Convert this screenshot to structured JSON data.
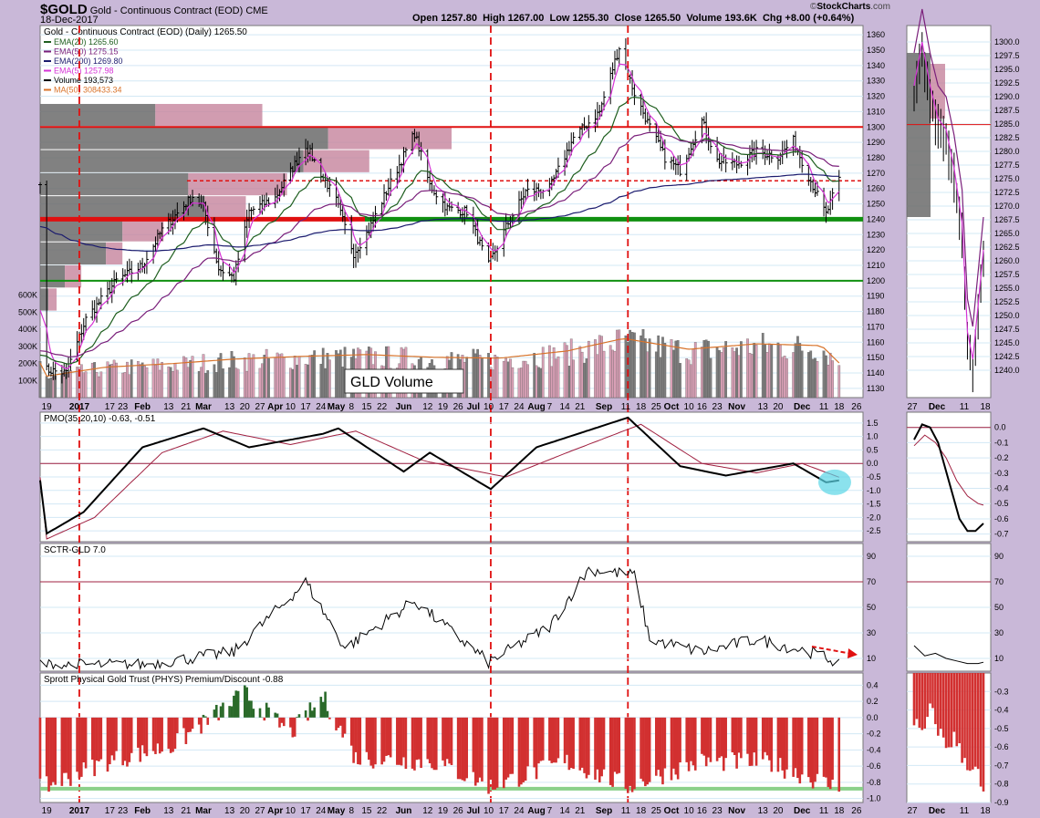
{
  "header": {
    "symbol": "$GOLD",
    "name": "Gold - Continuous Contract (EOD)",
    "exchange": "CME",
    "date": "18-Dec-2017",
    "open_label": "Open",
    "open": "1257.80",
    "high_label": "High",
    "high": "1267.00",
    "low_label": "Low",
    "low": "1255.30",
    "close_label": "Close",
    "close": "1265.50",
    "volume_label": "Volume",
    "volume": "193.6K",
    "chg_label": "Chg",
    "chg": "+8.00 (+0.64%)",
    "credit_prefix": "©",
    "credit_brand": "StockCharts",
    "credit_suffix": ".com"
  },
  "colors": {
    "background": "#c9b8d8",
    "panel": "#ffffff",
    "grid": "#d3e8f5",
    "ema20": "#1e5e1e",
    "ema50": "#7a1f7a",
    "ema200": "#1b1b6e",
    "ema5": "#d633d6",
    "ma50vol": "#d8732a",
    "vol_up": "#d9a0b6",
    "vol_down": "#7d7d7d",
    "vbp_up": "#c5839c",
    "vbp_down": "#6b6b6b",
    "red_line": "#e01010",
    "green_line": "#109010",
    "pmo_signal": "#a02040",
    "hist_neg": "#d23030",
    "hist_pos": "#2a6a2a",
    "highlight": "#5ad6e6"
  },
  "chart_data": [
    {
      "panel": "price",
      "type": "ohlc",
      "title": "Gold - Continuous Contract (EOD) (Daily) 1265.50",
      "legend": [
        {
          "name": "EMA(20)",
          "value": "1265.60"
        },
        {
          "name": "EMA(50)",
          "value": "1275.15"
        },
        {
          "name": "EMA(200)",
          "value": "1269.80"
        },
        {
          "name": "EMA(5)",
          "value": "1257.98"
        },
        {
          "name": "Volume",
          "value": "193,573"
        },
        {
          "name": "MA(50)",
          "value": "308433.34"
        }
      ],
      "ylim": [
        1124,
        1366
      ],
      "y_ticks": [
        1130,
        1140,
        1150,
        1160,
        1170,
        1180,
        1190,
        1200,
        1210,
        1220,
        1230,
        1240,
        1250,
        1260,
        1270,
        1280,
        1290,
        1300,
        1310,
        1320,
        1330,
        1340,
        1350,
        1360
      ],
      "x_labels": [
        "19",
        "2017",
        "17",
        "23",
        "Feb",
        "13",
        "21",
        "Mar",
        "13",
        "20",
        "27",
        "Apr",
        "10",
        "17",
        "24",
        "May",
        "8",
        "15",
        "22",
        "Jun",
        "12",
        "19",
        "26",
        "Jul",
        "10",
        "17",
        "24",
        "Aug",
        "7",
        "14",
        "21",
        "Sep",
        "11",
        "18",
        "25",
        "Oct",
        "10",
        "16",
        "23",
        "Nov",
        "13",
        "20",
        "Dec",
        "11",
        "18",
        "26"
      ],
      "close_series": [
        [
          "2016-12-19",
          1142
        ],
        [
          "2016-12-28",
          1140
        ],
        [
          "2017-01-06",
          1175
        ],
        [
          "2017-01-20",
          1200
        ],
        [
          "2017-02-01",
          1210
        ],
        [
          "2017-02-10",
          1233
        ],
        [
          "2017-02-24",
          1255
        ],
        [
          "2017-03-01",
          1248
        ],
        [
          "2017-03-08",
          1208
        ],
        [
          "2017-03-15",
          1202
        ],
        [
          "2017-03-22",
          1245
        ],
        [
          "2017-04-03",
          1254
        ],
        [
          "2017-04-17",
          1288
        ],
        [
          "2017-04-24",
          1270
        ],
        [
          "2017-05-01",
          1252
        ],
        [
          "2017-05-09",
          1218
        ],
        [
          "2017-05-16",
          1233
        ],
        [
          "2017-05-24",
          1258
        ],
        [
          "2017-06-06",
          1296
        ],
        [
          "2017-06-13",
          1262
        ],
        [
          "2017-06-21",
          1247
        ],
        [
          "2017-06-30",
          1245
        ],
        [
          "2017-07-10",
          1210
        ],
        [
          "2017-07-18",
          1235
        ],
        [
          "2017-07-27",
          1258
        ],
        [
          "2017-08-07",
          1260
        ],
        [
          "2017-08-18",
          1293
        ],
        [
          "2017-08-30",
          1310
        ],
        [
          "2017-09-08",
          1352
        ],
        [
          "2017-09-15",
          1322
        ],
        [
          "2017-09-22",
          1300
        ],
        [
          "2017-09-29",
          1280
        ],
        [
          "2017-10-06",
          1272
        ],
        [
          "2017-10-16",
          1304
        ],
        [
          "2017-10-23",
          1278
        ],
        [
          "2017-11-01",
          1276
        ],
        [
          "2017-11-10",
          1284
        ],
        [
          "2017-11-20",
          1281
        ],
        [
          "2017-11-27",
          1291
        ],
        [
          "2017-12-05",
          1265
        ],
        [
          "2017-12-12",
          1243
        ],
        [
          "2017-12-18",
          1265.5
        ]
      ],
      "horizontal_lines": [
        {
          "value": 1300,
          "style": "solid",
          "color": "red"
        },
        {
          "value": 1265,
          "style": "dashed",
          "color": "red"
        },
        {
          "value": 1240,
          "style": "solid-thick",
          "color": "red+green"
        },
        {
          "value": 1200,
          "style": "solid",
          "color": "green"
        }
      ],
      "vertical_markers": [
        "2017-01-03",
        "2017-07-11",
        "2017-09-12"
      ]
    },
    {
      "panel": "volume",
      "type": "bar",
      "label": "GLD Volume",
      "ylim": [
        0,
        700000
      ],
      "y_ticks": [
        "100K",
        "200K",
        "300K",
        "400K",
        "500K",
        "600K"
      ],
      "volume_k_series": [
        [
          "2016-12-19",
          120
        ],
        [
          "2017-01-15",
          170
        ],
        [
          "2017-02-15",
          190
        ],
        [
          "2017-03-15",
          215
        ],
        [
          "2017-04-15",
          230
        ],
        [
          "2017-05-15",
          240
        ],
        [
          "2017-06-15",
          225
        ],
        [
          "2017-07-15",
          220
        ],
        [
          "2017-08-15",
          260
        ],
        [
          "2017-09-10",
          330
        ],
        [
          "2017-10-10",
          270
        ],
        [
          "2017-11-10",
          300
        ],
        [
          "2017-12-10",
          290
        ],
        [
          "2017-12-18",
          193.6
        ]
      ],
      "ma50_k": 308.4
    },
    {
      "panel": "pmo",
      "type": "line",
      "title": "PMO(35,20,10) -0.63, -0.51",
      "ylim": [
        -2.9,
        1.9
      ],
      "y_ticks": [
        1.5,
        1.0,
        0.5,
        0.0,
        -0.5,
        -1.0,
        -1.5,
        -2.0,
        -2.5
      ],
      "pmo": [
        [
          "2016-12-19",
          -2.6
        ],
        [
          "2017-01-05",
          -1.8
        ],
        [
          "2017-02-01",
          0.6
        ],
        [
          "2017-03-01",
          1.3
        ],
        [
          "2017-03-22",
          0.6
        ],
        [
          "2017-04-25",
          1.1
        ],
        [
          "2017-05-02",
          1.3
        ],
        [
          "2017-06-01",
          -0.3
        ],
        [
          "2017-06-13",
          0.4
        ],
        [
          "2017-07-11",
          -0.95
        ],
        [
          "2017-08-01",
          0.6
        ],
        [
          "2017-09-12",
          1.7
        ],
        [
          "2017-10-06",
          -0.1
        ],
        [
          "2017-10-27",
          -0.45
        ],
        [
          "2017-11-27",
          0.0
        ],
        [
          "2017-12-12",
          -0.7
        ],
        [
          "2017-12-18",
          -0.63
        ]
      ],
      "signal": [
        [
          "2016-12-19",
          -2.8
        ],
        [
          "2017-01-10",
          -2.0
        ],
        [
          "2017-02-10",
          0.4
        ],
        [
          "2017-03-10",
          1.2
        ],
        [
          "2017-04-10",
          0.7
        ],
        [
          "2017-05-10",
          1.2
        ],
        [
          "2017-06-10",
          0.1
        ],
        [
          "2017-07-18",
          -0.5
        ],
        [
          "2017-08-15",
          0.4
        ],
        [
          "2017-09-18",
          1.45
        ],
        [
          "2017-10-16",
          0.0
        ],
        [
          "2017-11-10",
          -0.35
        ],
        [
          "2017-12-01",
          0.0
        ],
        [
          "2017-12-18",
          -0.51
        ]
      ]
    },
    {
      "panel": "sctr",
      "type": "line",
      "title": "SCTR-GLD 7.0",
      "ylim": [
        0,
        100
      ],
      "y_ticks": [
        10,
        30,
        50,
        70,
        90
      ],
      "reference_line": 70,
      "values": [
        [
          "2016-12-19",
          5
        ],
        [
          "2017-02-01",
          5
        ],
        [
          "2017-03-15",
          15
        ],
        [
          "2017-04-17",
          70
        ],
        [
          "2017-05-05",
          18
        ],
        [
          "2017-06-06",
          55
        ],
        [
          "2017-07-10",
          7
        ],
        [
          "2017-08-07",
          35
        ],
        [
          "2017-08-25",
          80
        ],
        [
          "2017-09-15",
          75
        ],
        [
          "2017-09-22",
          25
        ],
        [
          "2017-10-16",
          15
        ],
        [
          "2017-11-10",
          25
        ],
        [
          "2017-12-05",
          15
        ],
        [
          "2017-12-18",
          7
        ]
      ]
    },
    {
      "panel": "phys",
      "type": "bar",
      "title": "Sprott Physical Gold Trust (PHYS) Premium/Discount -0.88",
      "ylim": [
        -1.05,
        0.55
      ],
      "y_ticks": [
        0.4,
        0.2,
        0.0,
        -0.2,
        -0.4,
        -0.6,
        -0.8,
        -1.0
      ],
      "values": [
        [
          "2016-12-19",
          -0.85
        ],
        [
          "2017-01-15",
          -0.55
        ],
        [
          "2017-02-15",
          -0.35
        ],
        [
          "2017-03-20",
          0.3
        ],
        [
          "2017-04-10",
          -0.2
        ],
        [
          "2017-04-25",
          0.25
        ],
        [
          "2017-05-10",
          -0.5
        ],
        [
          "2017-06-15",
          -0.55
        ],
        [
          "2017-07-11",
          -0.85
        ],
        [
          "2017-08-15",
          -0.55
        ],
        [
          "2017-09-12",
          -0.85
        ],
        [
          "2017-10-15",
          -0.55
        ],
        [
          "2017-11-15",
          -0.55
        ],
        [
          "2017-12-18",
          -0.88
        ]
      ]
    },
    {
      "panel": "mini-price",
      "type": "ohlc",
      "ylim": [
        1235,
        1303
      ],
      "y_ticks": [
        "1300.0",
        "1297.5",
        "1295.0",
        "1292.5",
        "1290.0",
        "1287.5",
        "1285.0",
        "1282.5",
        "1280.0",
        "1277.5",
        "1275.0",
        "1272.5",
        "1270.0",
        "1267.5",
        "1265.0",
        "1262.5",
        "1260.0",
        "1257.5",
        "1255.0",
        "1252.5",
        "1250.0",
        "1247.5",
        "1245.0",
        "1242.5",
        "1240.0"
      ],
      "x_labels": [
        "27",
        "Dec",
        "11",
        "18"
      ],
      "values": [
        [
          0,
          1290
        ],
        [
          3,
          1298
        ],
        [
          6,
          1290
        ],
        [
          9,
          1284
        ],
        [
          12,
          1282
        ],
        [
          15,
          1275
        ],
        [
          18,
          1265
        ],
        [
          20,
          1245
        ],
        [
          22,
          1240
        ],
        [
          24,
          1250
        ],
        [
          26,
          1260
        ]
      ]
    },
    {
      "panel": "mini-pmo",
      "type": "line",
      "ylim": [
        -0.75,
        0.1
      ],
      "y_ticks": [
        "0.0",
        "-0.1",
        "-0.2",
        "-0.3",
        "-0.4",
        "-0.5",
        "-0.6",
        "-0.7"
      ],
      "pmo": [
        [
          0,
          -0.08
        ],
        [
          3,
          0.02
        ],
        [
          6,
          0.0
        ],
        [
          9,
          -0.1
        ],
        [
          13,
          -0.35
        ],
        [
          17,
          -0.6
        ],
        [
          20,
          -0.68
        ],
        [
          23,
          -0.68
        ],
        [
          26,
          -0.63
        ]
      ],
      "signal": [
        [
          0,
          -0.12
        ],
        [
          4,
          -0.05
        ],
        [
          8,
          -0.1
        ],
        [
          12,
          -0.2
        ],
        [
          16,
          -0.35
        ],
        [
          20,
          -0.45
        ],
        [
          24,
          -0.5
        ],
        [
          26,
          -0.51
        ]
      ]
    },
    {
      "panel": "mini-sctr",
      "type": "line",
      "ylim": [
        0,
        100
      ],
      "y_ticks": [
        10,
        30,
        50,
        70,
        90
      ],
      "values": [
        [
          0,
          20
        ],
        [
          4,
          12
        ],
        [
          8,
          14
        ],
        [
          12,
          10
        ],
        [
          16,
          8
        ],
        [
          20,
          6
        ],
        [
          24,
          6
        ],
        [
          26,
          7
        ]
      ]
    },
    {
      "panel": "mini-phys",
      "type": "bar",
      "ylim": [
        -0.9,
        -0.2
      ],
      "y_ticks": [
        "-0.3",
        "-0.4",
        "-0.5",
        "-0.6",
        "-0.7",
        "-0.8",
        "-0.9"
      ],
      "values": [
        [
          0,
          -0.45
        ],
        [
          3,
          -0.55
        ],
        [
          6,
          -0.4
        ],
        [
          9,
          -0.5
        ],
        [
          12,
          -0.6
        ],
        [
          15,
          -0.55
        ],
        [
          18,
          -0.65
        ],
        [
          21,
          -0.7
        ],
        [
          24,
          -0.75
        ],
        [
          26,
          -0.88
        ]
      ]
    }
  ]
}
